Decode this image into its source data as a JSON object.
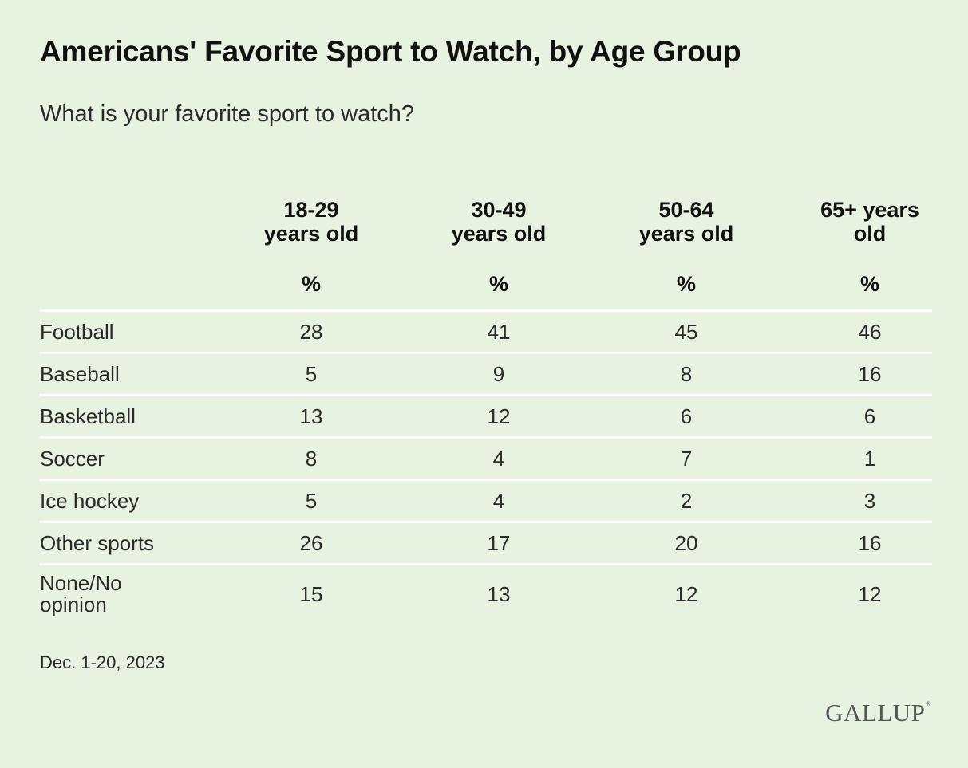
{
  "chart_data": {
    "type": "table",
    "title": "Americans' Favorite Sport to Watch, by Age Group",
    "subtitle": "What is your favorite sport to watch?",
    "columns": [
      {
        "label": "18-29 years old",
        "line1": "18-29",
        "line2": "years old",
        "unit": "%"
      },
      {
        "label": "30-49 years old",
        "line1": "30-49",
        "line2": "years old",
        "unit": "%"
      },
      {
        "label": "50-64 years old",
        "line1": "50-64",
        "line2": "years old",
        "unit": "%"
      },
      {
        "label": "65+ years old",
        "line1": "65+ years",
        "line2": "old",
        "unit": "%"
      }
    ],
    "rows": [
      {
        "label": "Football",
        "values": [
          28,
          41,
          45,
          46
        ]
      },
      {
        "label": "Baseball",
        "values": [
          5,
          9,
          8,
          16
        ]
      },
      {
        "label": "Basketball",
        "values": [
          13,
          12,
          6,
          6
        ]
      },
      {
        "label": "Soccer",
        "values": [
          8,
          4,
          7,
          1
        ]
      },
      {
        "label": "Ice hockey",
        "values": [
          5,
          4,
          2,
          3
        ]
      },
      {
        "label": "Other sports",
        "values": [
          26,
          17,
          20,
          16
        ]
      },
      {
        "label": "None/No opinion",
        "line1": "None/No",
        "line2": "opinion",
        "values": [
          15,
          13,
          12,
          12
        ]
      }
    ],
    "footnote": "Dec. 1-20, 2023",
    "source_logo": "GALLUP",
    "colors": {
      "background": "#e8f2e1",
      "divider": "#ffffff",
      "text": "#1a1a1a"
    }
  }
}
